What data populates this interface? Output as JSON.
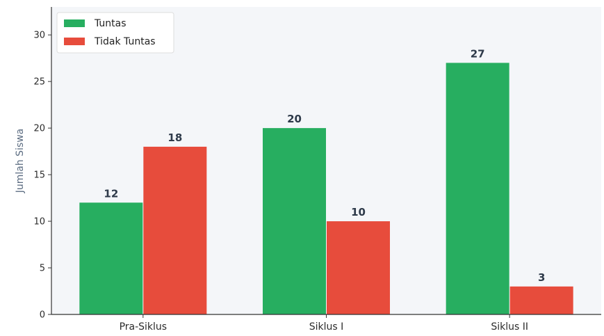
{
  "chart_data": {
    "type": "bar",
    "categories": [
      "Pra-Siklus",
      "Siklus I",
      "Siklus II"
    ],
    "series": [
      {
        "name": "Tuntas",
        "values": [
          12,
          20,
          27
        ],
        "color": "#27ae60"
      },
      {
        "name": "Tidak Tuntas",
        "values": [
          18,
          10,
          3
        ],
        "color": "#e74c3c"
      }
    ],
    "title": "",
    "xlabel": "",
    "ylabel": "Jumlah Siswa",
    "ylim": [
      0,
      33
    ],
    "yticks": [
      0,
      5,
      10,
      15,
      20,
      25,
      30
    ],
    "legend_position": "top-left",
    "grid": false,
    "plot_background": "#f4f6f9"
  }
}
